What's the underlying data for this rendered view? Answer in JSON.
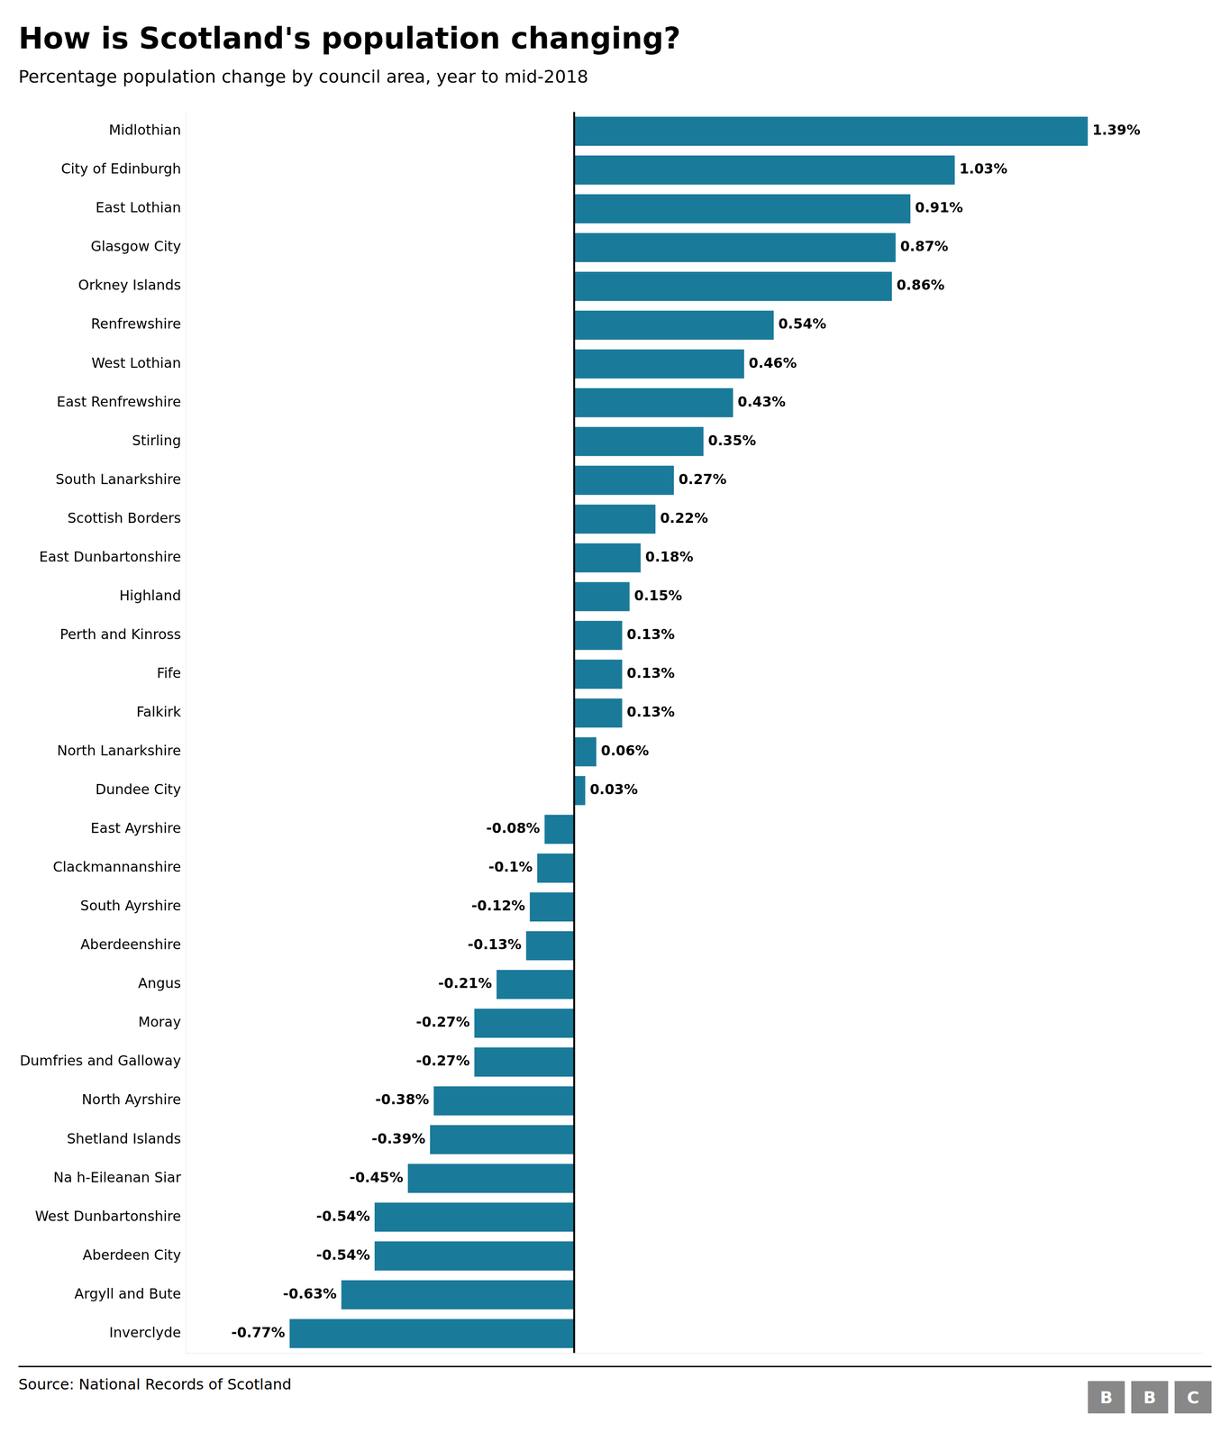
{
  "chart_data": {
    "type": "bar",
    "orientation": "horizontal",
    "title": "How is Scotland's population changing?",
    "subtitle": "Percentage population change by council area, year to mid-2018",
    "annotations": [
      "Source: National Records of Scotland",
      "BBC"
    ],
    "categories": [
      "Midlothian",
      "City of Edinburgh",
      "East Lothian",
      "Glasgow City",
      "Orkney Islands",
      "Renfrewshire",
      "West Lothian",
      "East Renfrewshire",
      "Stirling",
      "South Lanarkshire",
      "Scottish Borders",
      "East Dunbartonshire",
      "Highland",
      "Perth and Kinross",
      "Fife",
      "Falkirk",
      "North Lanarkshire",
      "Dundee City",
      "East Ayrshire",
      "Clackmannanshire",
      "South Ayrshire",
      "Aberdeenshire",
      "Angus",
      "Moray",
      "Dumfries and Galloway",
      "North Ayrshire",
      "Shetland Islands",
      "Na h-Eileanan Siar",
      "West Dunbartonshire",
      "Aberdeen City",
      "Argyll and Bute",
      "Inverclyde"
    ],
    "values": [
      1.39,
      1.03,
      0.91,
      0.87,
      0.86,
      0.54,
      0.46,
      0.43,
      0.35,
      0.27,
      0.22,
      0.18,
      0.15,
      0.13,
      0.13,
      0.13,
      0.06,
      0.03,
      -0.08,
      -0.1,
      -0.12,
      -0.13,
      -0.21,
      -0.27,
      -0.27,
      -0.38,
      -0.39,
      -0.45,
      -0.54,
      -0.54,
      -0.63,
      -0.77
    ],
    "value_labels": [
      "1.39%",
      "1.03%",
      "0.91%",
      "0.87%",
      "0.86%",
      "0.54%",
      "0.46%",
      "0.43%",
      "0.35%",
      "0.27%",
      "0.22%",
      "0.18%",
      "0.15%",
      "0.13%",
      "0.13%",
      "0.13%",
      "0.06%",
      "0.03%",
      "-0.08%",
      "-0.1%",
      "-0.12%",
      "-0.13%",
      "-0.21%",
      "-0.27%",
      "-0.27%",
      "-0.38%",
      "-0.39%",
      "-0.45%",
      "-0.54%",
      "-0.54%",
      "-0.63%",
      "-0.77%"
    ],
    "data_labels": true,
    "color": "#1a7a9a",
    "xlim": [
      -1.05,
      1.7
    ],
    "grid": false,
    "tick_labels": "y"
  }
}
